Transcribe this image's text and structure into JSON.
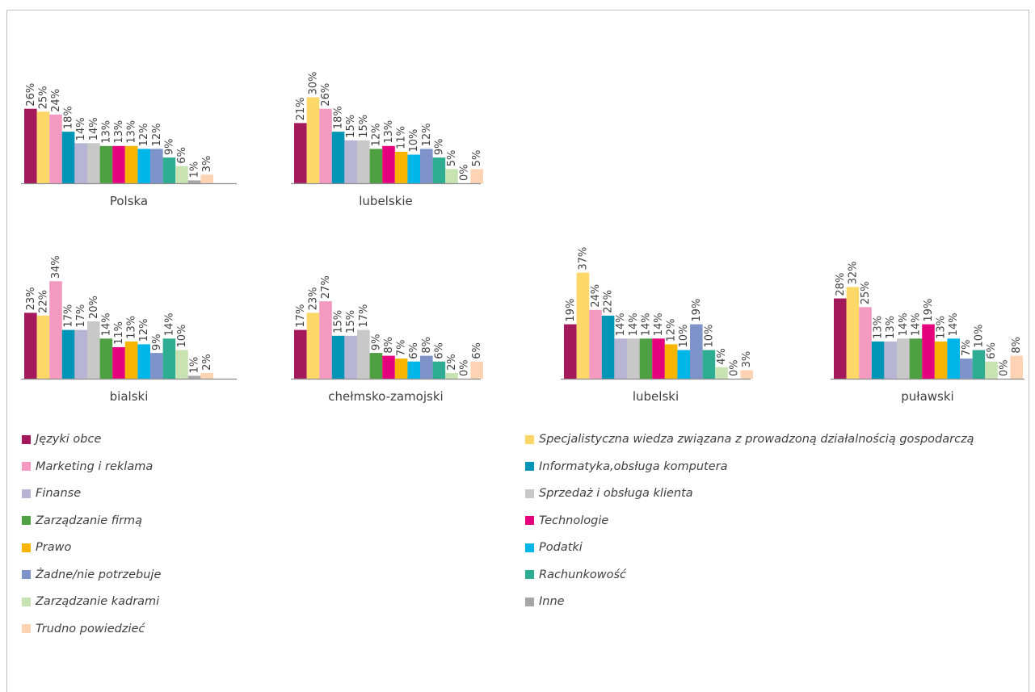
{
  "colors": {
    "Języki obce": "#a3195b",
    "Specjalistyczna wiedza związana z prowadzoną działalnością gospodarczą": "#fdd768",
    "Marketing i reklama": "#f49ac1",
    "Informatyka,obsługa komputera": "#0095b6",
    "Finanse": "#b8b4d4",
    "Sprzedaż i obsługa klienta": "#c8c8c8",
    "Zarządzanie firmą": "#4fa043",
    "Technologie": "#e5007e",
    "Prawo": "#f7b500",
    "Podatki": "#00b5e8",
    "Żadne/nie potrzebuje": "#7e93c9",
    "Rachunkowość": "#2fad93",
    "Zarządzanie kadrami": "#c6e3b1",
    "Inne": "#a6a6a6",
    "Trudno powiedzieć": "#fdd3b4"
  },
  "legend": [
    {
      "label": "Języki obce",
      "color_key": "Języki obce"
    },
    {
      "label": "Specjalistyczna wiedza związana z prowadzoną działalnością gospodarczą",
      "color_key": "Specjalistyczna wiedza związana z prowadzoną działalnością gospodarczą"
    },
    {
      "label": "Marketing i reklama",
      "color_key": "Marketing i reklama"
    },
    {
      "label": "Informatyka,obsługa komputera",
      "color_key": "Informatyka,obsługa komputera"
    },
    {
      "label": "Finanse",
      "color_key": "Finanse"
    },
    {
      "label": "Sprzedaż i obsługa klienta",
      "color_key": "Sprzedaż i obsługa klienta"
    },
    {
      "label": " Zarządzanie firmą",
      "color_key": "Zarządzanie firmą"
    },
    {
      "label": "Technologie",
      "color_key": "Technologie"
    },
    {
      "label": "Prawo",
      "color_key": "Prawo"
    },
    {
      "label": "Podatki",
      "color_key": "Podatki"
    },
    {
      "label": "Żadne/nie potrzebuje",
      "color_key": "Żadne/nie potrzebuje"
    },
    {
      "label": "Rachunkowość",
      "color_key": "Rachunkowość"
    },
    {
      "label": " Zarządzanie kadrami",
      "color_key": "Zarządzanie kadrami"
    },
    {
      "label": "Inne",
      "color_key": "Inne"
    },
    {
      "label": "Trudno powiedzieć",
      "color_key": "Trudno powiedzieć"
    }
  ],
  "chart_data": [
    {
      "type": "bar",
      "title": "Polska",
      "series": [
        {
          "name": "Języki obce",
          "value": 26
        },
        {
          "name": "Specjalistyczna wiedza związana z prowadzoną działalnością gospodarczą",
          "value": 25
        },
        {
          "name": "Marketing i reklama",
          "value": 24
        },
        {
          "name": "Informatyka,obsługa komputera",
          "value": 18
        },
        {
          "name": "Finanse",
          "value": 14
        },
        {
          "name": "Sprzedaż i obsługa klienta",
          "value": 14
        },
        {
          "name": "Zarządzanie firmą",
          "value": 13
        },
        {
          "name": "Technologie",
          "value": 13
        },
        {
          "name": "Prawo",
          "value": 13
        },
        {
          "name": "Podatki",
          "value": 12
        },
        {
          "name": "Żadne/nie potrzebuje",
          "value": 12
        },
        {
          "name": "Rachunkowość",
          "value": 9
        },
        {
          "name": "Zarządzanie kadrami",
          "value": 6
        },
        {
          "name": "Inne",
          "value": 1
        },
        {
          "name": "Trudno powiedzieć",
          "value": 3
        }
      ]
    },
    {
      "type": "bar",
      "title": "lubelskie",
      "series": [
        {
          "name": "Języki obce",
          "value": 21
        },
        {
          "name": "Specjalistyczna wiedza związana z prowadzoną działalnością gospodarczą",
          "value": 30
        },
        {
          "name": "Marketing i reklama",
          "value": 26
        },
        {
          "name": "Informatyka,obsługa komputera",
          "value": 18
        },
        {
          "name": "Finanse",
          "value": 15
        },
        {
          "name": "Sprzedaż i obsługa klienta",
          "value": 15
        },
        {
          "name": "Zarządzanie firmą",
          "value": 12
        },
        {
          "name": "Technologie",
          "value": 13
        },
        {
          "name": "Prawo",
          "value": 11
        },
        {
          "name": "Podatki",
          "value": 10
        },
        {
          "name": "Żadne/nie potrzebuje",
          "value": 12
        },
        {
          "name": "Rachunkowość",
          "value": 9
        },
        {
          "name": "Zarządzanie kadrami",
          "value": 5
        },
        {
          "name": "Inne",
          "value": 0
        },
        {
          "name": "Trudno powiedzieć",
          "value": 5
        }
      ]
    },
    {
      "type": "bar",
      "title": "bialski",
      "series": [
        {
          "name": "Języki obce",
          "value": 23
        },
        {
          "name": "Specjalistyczna wiedza związana z prowadzoną działalnością gospodarczą",
          "value": 22
        },
        {
          "name": "Marketing i reklama",
          "value": 34
        },
        {
          "name": "Informatyka,obsługa komputera",
          "value": 17
        },
        {
          "name": "Finanse",
          "value": 17
        },
        {
          "name": "Sprzedaż i obsługa klienta",
          "value": 20
        },
        {
          "name": "Zarządzanie firmą",
          "value": 14
        },
        {
          "name": "Technologie",
          "value": 11
        },
        {
          "name": "Prawo",
          "value": 13
        },
        {
          "name": "Podatki",
          "value": 12
        },
        {
          "name": "Żadne/nie potrzebuje",
          "value": 9
        },
        {
          "name": "Rachunkowość",
          "value": 14
        },
        {
          "name": "Zarządzanie kadrami",
          "value": 10
        },
        {
          "name": "Inne",
          "value": 1
        },
        {
          "name": "Trudno powiedzieć",
          "value": 2
        }
      ]
    },
    {
      "type": "bar",
      "title": "chełmsko-zamojski",
      "series": [
        {
          "name": "Języki obce",
          "value": 17
        },
        {
          "name": "Specjalistyczna wiedza związana z prowadzoną działalnością gospodarczą",
          "value": 23
        },
        {
          "name": "Marketing i reklama",
          "value": 27
        },
        {
          "name": "Informatyka,obsługa komputera",
          "value": 15
        },
        {
          "name": "Finanse",
          "value": 15
        },
        {
          "name": "Sprzedaż i obsługa klienta",
          "value": 17
        },
        {
          "name": "Zarządzanie firmą",
          "value": 9
        },
        {
          "name": "Technologie",
          "value": 8
        },
        {
          "name": "Prawo",
          "value": 7
        },
        {
          "name": "Podatki",
          "value": 6
        },
        {
          "name": "Żadne/nie potrzebuje",
          "value": 8
        },
        {
          "name": "Rachunkowość",
          "value": 6
        },
        {
          "name": "Zarządzanie kadrami",
          "value": 2
        },
        {
          "name": "Inne",
          "value": 0
        },
        {
          "name": "Trudno powiedzieć",
          "value": 6
        }
      ]
    },
    {
      "type": "bar",
      "title": "lubelski",
      "series": [
        {
          "name": "Języki obce",
          "value": 19
        },
        {
          "name": "Specjalistyczna wiedza związana z prowadzoną działalnością gospodarczą",
          "value": 37
        },
        {
          "name": "Marketing i reklama",
          "value": 24
        },
        {
          "name": "Informatyka,obsługa komputera",
          "value": 22
        },
        {
          "name": "Finanse",
          "value": 14
        },
        {
          "name": "Sprzedaż i obsługa klienta",
          "value": 14
        },
        {
          "name": "Zarządzanie firmą",
          "value": 14
        },
        {
          "name": "Technologie",
          "value": 14
        },
        {
          "name": "Prawo",
          "value": 12
        },
        {
          "name": "Podatki",
          "value": 10
        },
        {
          "name": "Żadne/nie potrzebuje",
          "value": 19
        },
        {
          "name": "Rachunkowość",
          "value": 10
        },
        {
          "name": "Zarządzanie kadrami",
          "value": 4
        },
        {
          "name": "Inne",
          "value": 0
        },
        {
          "name": "Trudno powiedzieć",
          "value": 3
        }
      ]
    },
    {
      "type": "bar",
      "title": "puławski",
      "series": [
        {
          "name": "Języki obce",
          "value": 28
        },
        {
          "name": "Specjalistyczna wiedza związana z prowadzoną działalnością gospodarczą",
          "value": 32
        },
        {
          "name": "Marketing i reklama",
          "value": 25
        },
        {
          "name": "Informatyka,obsługa komputera",
          "value": 13
        },
        {
          "name": "Finanse",
          "value": 13
        },
        {
          "name": "Sprzedaż i obsługa klienta",
          "value": 14
        },
        {
          "name": "Zarządzanie firmą",
          "value": 14
        },
        {
          "name": "Technologie",
          "value": 19
        },
        {
          "name": "Prawo",
          "value": 13
        },
        {
          "name": "Podatki",
          "value": 14
        },
        {
          "name": "Żadne/nie potrzebuje",
          "value": 7
        },
        {
          "name": "Rachunkowość",
          "value": 10
        },
        {
          "name": "Zarządzanie kadrami",
          "value": 6
        },
        {
          "name": "Inne",
          "value": 0
        },
        {
          "name": "Trudno powiedzieć",
          "value": 8
        }
      ]
    }
  ]
}
